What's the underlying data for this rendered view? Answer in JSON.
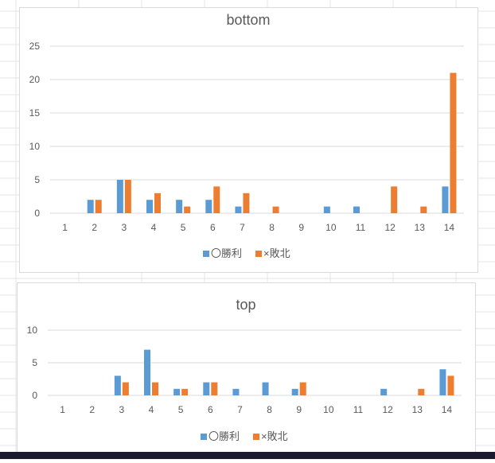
{
  "chart_data": [
    {
      "type": "bar",
      "title": "bottom",
      "categories": [
        "1",
        "2",
        "3",
        "4",
        "5",
        "6",
        "7",
        "8",
        "9",
        "10",
        "11",
        "12",
        "13",
        "14"
      ],
      "series": [
        {
          "name": "〇勝利",
          "color": "#5b9bd5",
          "values": [
            0,
            2,
            5,
            2,
            2,
            2,
            1,
            0,
            0,
            1,
            1,
            0,
            0,
            4
          ]
        },
        {
          "name": "×敗北",
          "color": "#ed7d31",
          "values": [
            0,
            2,
            5,
            3,
            1,
            4,
            3,
            1,
            0,
            0,
            0,
            4,
            1,
            21
          ]
        }
      ],
      "ylim": [
        0,
        25
      ],
      "yticks": [
        0,
        5,
        10,
        15,
        20,
        25
      ],
      "grid": true,
      "legend": "bottom"
    },
    {
      "type": "bar",
      "title": "top",
      "categories": [
        "1",
        "2",
        "3",
        "4",
        "5",
        "6",
        "7",
        "8",
        "9",
        "10",
        "11",
        "12",
        "13",
        "14"
      ],
      "series": [
        {
          "name": "〇勝利",
          "color": "#5b9bd5",
          "values": [
            0,
            0,
            3,
            7,
            1,
            2,
            1,
            2,
            1,
            0,
            0,
            1,
            0,
            4
          ]
        },
        {
          "name": "×敗北",
          "color": "#ed7d31",
          "values": [
            0,
            0,
            2,
            2,
            1,
            2,
            0,
            0,
            2,
            0,
            0,
            0,
            1,
            3
          ]
        }
      ],
      "ylim": [
        0,
        10
      ],
      "yticks": [
        0,
        5,
        10
      ],
      "grid": true,
      "legend": "bottom"
    }
  ]
}
